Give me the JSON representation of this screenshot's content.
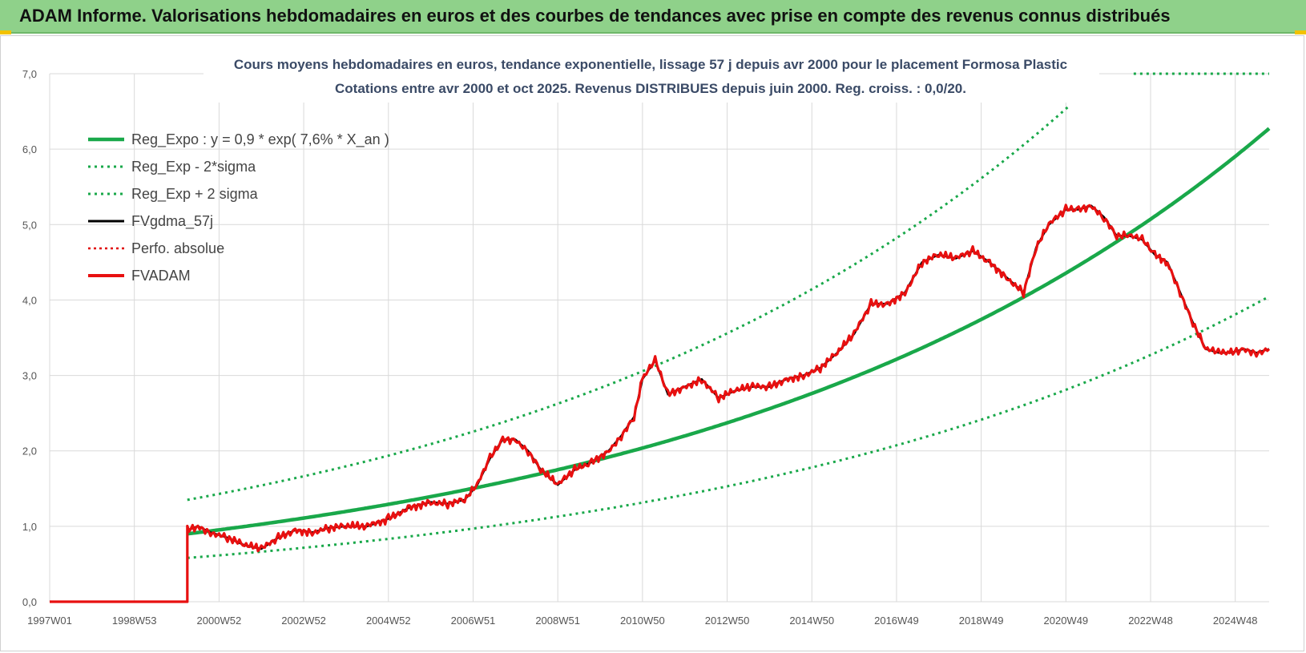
{
  "banner": {
    "text": "ADAM Informe. Valorisations hebdomadaires en euros et des courbes de tendances avec prise en compte des revenus connus distribués"
  },
  "colors": {
    "banner_bg": "#8fd18a",
    "reg_expo": "#19a84a",
    "sigma": "#19a84a",
    "fvgdma": "#000000",
    "perfo": "#e00000",
    "fvadam": "#e81010",
    "grid": "#d9d9d9"
  },
  "chart_data": {
    "type": "line",
    "title_line1": "Cours moyens hebdomadaires en euros, tendance exponentielle, lissage 57 j depuis avr 2000 pour le placement Formosa Plastic",
    "title_line2": "Cotations entre avr 2000 et oct 2025. Revenus DISTRIBUES depuis juin 2000. Reg. croiss. : 0,0/20.",
    "x_range": [
      1997.0,
      2025.8
    ],
    "ylim": [
      0,
      7
    ],
    "y_ticks": [
      0,
      1,
      2,
      3,
      4,
      5,
      6,
      7
    ],
    "y_tick_labels": [
      "0,0",
      "1,0",
      "2,0",
      "3,0",
      "4,0",
      "5,0",
      "6,0",
      "7,0"
    ],
    "x_ticks": [
      1997.0,
      1999.0,
      2001.0,
      2003.0,
      2005.0,
      2007.0,
      2009.0,
      2011.0,
      2013.0,
      2015.0,
      2017.0,
      2019.0,
      2021.0,
      2023.0,
      2025.0
    ],
    "x_tick_labels": [
      "1997W01",
      "1998W53",
      "2000W52",
      "2002W52",
      "2004W52",
      "2006W51",
      "2008W51",
      "2010W50",
      "2012W50",
      "2014W50",
      "2016W49",
      "2018W49",
      "2020W49",
      "2022W48",
      "2024W48"
    ],
    "legend": [
      {
        "key": "reg_expo",
        "label": "Reg_Expo : y = 0,9 * exp( 7,6% *  X_an )"
      },
      {
        "key": "sigma_minus",
        "label": "Reg_Exp - 2*sigma"
      },
      {
        "key": "sigma_plus",
        "label": "Reg_Exp + 2 sigma"
      },
      {
        "key": "fvgdma",
        "label": "FVgdma_57j"
      },
      {
        "key": "perfo",
        "label": "Perfo. absolue"
      },
      {
        "key": "fvadam",
        "label": "FVADAM"
      }
    ],
    "regression": {
      "a": 0.9,
      "rate": 0.076,
      "start": 2000.25,
      "end": 2025.8,
      "minus_factor": 0.645,
      "plus_factor": 1.5,
      "plus_cap": 7.0
    },
    "series": [
      {
        "name": "FVADAM",
        "x": [
          1997.0,
          2000.25,
          2000.25,
          2000.5,
          2000.8,
          2001.2,
          2001.6,
          2002.0,
          2002.4,
          2002.8,
          2003.2,
          2003.6,
          2004.0,
          2004.5,
          2005.0,
          2005.5,
          2006.0,
          2006.4,
          2006.8,
          2007.1,
          2007.4,
          2007.7,
          2008.0,
          2008.3,
          2008.6,
          2009.0,
          2009.4,
          2009.8,
          2010.2,
          2010.5,
          2010.8,
          2011.0,
          2011.3,
          2011.6,
          2012.0,
          2012.4,
          2012.8,
          2013.2,
          2013.6,
          2014.0,
          2014.4,
          2014.8,
          2015.2,
          2015.6,
          2016.0,
          2016.4,
          2016.8,
          2017.2,
          2017.6,
          2018.0,
          2018.4,
          2018.8,
          2019.2,
          2019.6,
          2020.0,
          2020.3,
          2020.6,
          2021.0,
          2021.3,
          2021.6,
          2021.9,
          2022.2,
          2022.5,
          2022.8,
          2023.1,
          2023.4,
          2023.7,
          2024.0,
          2024.3,
          2024.6,
          2024.9,
          2025.2,
          2025.5,
          2025.8
        ],
        "values": [
          0,
          0,
          0.95,
          1.0,
          0.92,
          0.85,
          0.75,
          0.7,
          0.85,
          0.95,
          0.92,
          0.98,
          1.0,
          1.0,
          1.1,
          1.25,
          1.32,
          1.3,
          1.35,
          1.55,
          1.9,
          2.15,
          2.15,
          2.0,
          1.75,
          1.55,
          1.75,
          1.85,
          2.0,
          2.2,
          2.45,
          2.95,
          3.2,
          2.75,
          2.85,
          2.95,
          2.7,
          2.8,
          2.85,
          2.85,
          2.95,
          3.0,
          3.1,
          3.3,
          3.55,
          3.95,
          3.95,
          4.1,
          4.5,
          4.6,
          4.55,
          4.65,
          4.5,
          4.3,
          4.1,
          4.7,
          5.0,
          5.2,
          5.2,
          5.25,
          5.1,
          4.85,
          4.85,
          4.8,
          4.6,
          4.5,
          4.1,
          3.7,
          3.35,
          3.3,
          3.3,
          3.35,
          3.3,
          3.35
        ]
      },
      {
        "name": "FVgdma_57j",
        "derived_from": "FVADAM",
        "smoothing": "57j"
      },
      {
        "name": "Perfo. absolue",
        "derived_from": "FVADAM"
      }
    ]
  }
}
